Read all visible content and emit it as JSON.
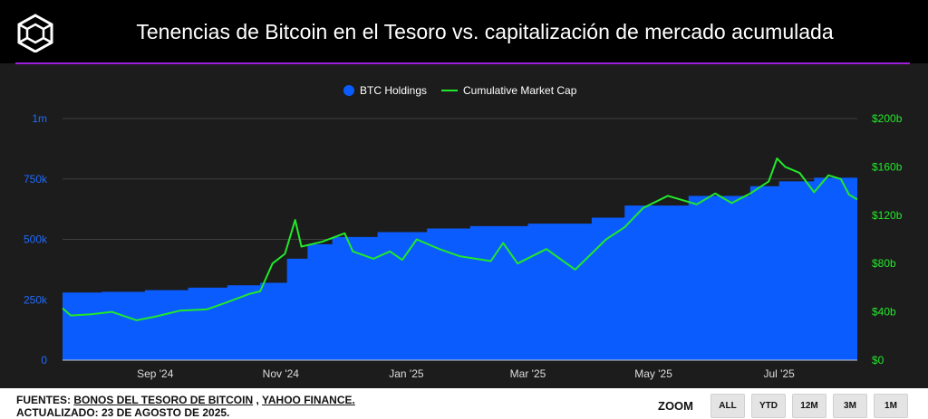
{
  "title": "Tenencias de Bitcoin en el Tesoro vs. capitalización de mercado acumulada",
  "logo_icon": "cube-logo-icon",
  "footer": {
    "sources_prefix": "FUENTES:",
    "source1": "BONOS DEL TESORO DE BITCOIN",
    "separator": ",",
    "source2": "YAHOO FINANCE.",
    "updated": "ACTUALIZADO: 23 DE AGOSTO DE 2025."
  },
  "zoom": {
    "label": "ZOOM",
    "buttons": [
      "ALL",
      "YTD",
      "12M",
      "3M",
      "1M"
    ]
  },
  "colors": {
    "holdings": "#0a5cff",
    "market_cap": "#22e82a",
    "accent_line": "#9b1fd8"
  },
  "chart_data": {
    "type": "area",
    "legend_position": "top-center",
    "grid": true,
    "x_tick_labels": [
      "Sep '24",
      "Nov '24",
      "Jan '25",
      "Mar '25",
      "May '25",
      "Jul '25"
    ],
    "x_range": [
      "2024-08-01",
      "2025-08-22"
    ],
    "y_left": {
      "ticks": [
        "0",
        "250k",
        "500k",
        "750k",
        "1m"
      ],
      "range": [
        0,
        1000000
      ]
    },
    "y_right": {
      "ticks": [
        "$0",
        "$40b",
        "$80b",
        "$120b",
        "$160b",
        "$200b"
      ],
      "range": [
        0,
        200
      ]
    },
    "series": [
      {
        "name": "BTC Holdings",
        "axis": "left",
        "style": "area",
        "color": "#0a5cff",
        "points": [
          [
            "2024-08-01",
            280000
          ],
          [
            "2024-08-20",
            283000
          ],
          [
            "2024-09-10",
            290000
          ],
          [
            "2024-10-01",
            300000
          ],
          [
            "2024-10-20",
            310000
          ],
          [
            "2024-11-05",
            320000
          ],
          [
            "2024-11-18",
            420000
          ],
          [
            "2024-11-28",
            480000
          ],
          [
            "2024-12-10",
            510000
          ],
          [
            "2025-01-01",
            530000
          ],
          [
            "2025-01-25",
            545000
          ],
          [
            "2025-02-15",
            555000
          ],
          [
            "2025-03-15",
            565000
          ],
          [
            "2025-04-15",
            590000
          ],
          [
            "2025-05-01",
            640000
          ],
          [
            "2025-06-01",
            680000
          ],
          [
            "2025-07-01",
            720000
          ],
          [
            "2025-07-15",
            740000
          ],
          [
            "2025-08-01",
            755000
          ],
          [
            "2025-08-22",
            775000
          ]
        ]
      },
      {
        "name": "Cumulative Market Cap",
        "axis": "right",
        "style": "line",
        "color": "#22e82a",
        "points": [
          [
            "2024-08-01",
            43
          ],
          [
            "2024-08-05",
            37
          ],
          [
            "2024-08-15",
            38
          ],
          [
            "2024-08-25",
            40
          ],
          [
            "2024-09-06",
            33
          ],
          [
            "2024-09-15",
            36
          ],
          [
            "2024-09-27",
            41
          ],
          [
            "2024-10-10",
            42
          ],
          [
            "2024-10-20",
            48
          ],
          [
            "2024-10-31",
            55
          ],
          [
            "2024-11-05",
            57
          ],
          [
            "2024-11-11",
            80
          ],
          [
            "2024-11-17",
            88
          ],
          [
            "2024-11-22",
            116
          ],
          [
            "2024-11-25",
            94
          ],
          [
            "2024-12-05",
            98
          ],
          [
            "2024-12-16",
            105
          ],
          [
            "2024-12-20",
            90
          ],
          [
            "2024-12-30",
            84
          ],
          [
            "2025-01-07",
            90
          ],
          [
            "2025-01-13",
            83
          ],
          [
            "2025-01-20",
            100
          ],
          [
            "2025-01-31",
            92
          ],
          [
            "2025-02-10",
            86
          ],
          [
            "2025-02-25",
            82
          ],
          [
            "2025-03-03",
            97
          ],
          [
            "2025-03-10",
            80
          ],
          [
            "2025-03-24",
            92
          ],
          [
            "2025-04-07",
            75
          ],
          [
            "2025-04-22",
            100
          ],
          [
            "2025-05-01",
            110
          ],
          [
            "2025-05-10",
            126
          ],
          [
            "2025-05-22",
            136
          ],
          [
            "2025-06-05",
            129
          ],
          [
            "2025-06-14",
            138
          ],
          [
            "2025-06-22",
            130
          ],
          [
            "2025-07-01",
            138
          ],
          [
            "2025-07-10",
            148
          ],
          [
            "2025-07-14",
            167
          ],
          [
            "2025-07-18",
            160
          ],
          [
            "2025-07-25",
            155
          ],
          [
            "2025-08-01",
            139
          ],
          [
            "2025-08-08",
            153
          ],
          [
            "2025-08-14",
            150
          ],
          [
            "2025-08-18",
            137
          ],
          [
            "2025-08-22",
            133
          ]
        ]
      }
    ]
  }
}
